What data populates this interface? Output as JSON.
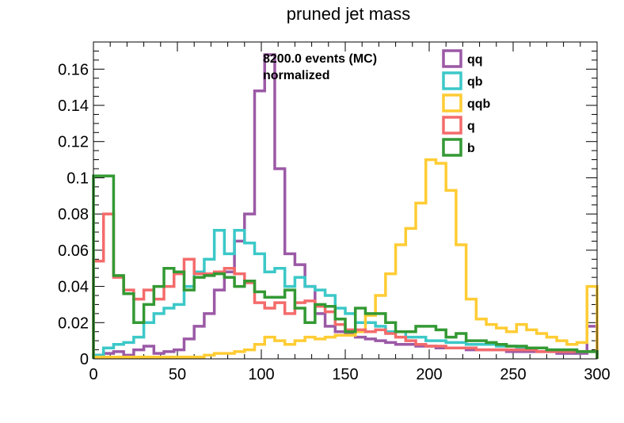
{
  "chart_data": {
    "type": "histogram-step",
    "title": "pruned jet mass",
    "xlabel": "",
    "ylabel": "",
    "xlim": [
      0,
      300
    ],
    "ylim": [
      0,
      0.175
    ],
    "bin_width": 6,
    "x_ticks": [
      0,
      50,
      100,
      150,
      200,
      250,
      300
    ],
    "x_tick_labels": [
      "0",
      "50",
      "100",
      "150",
      "200",
      "250",
      "300"
    ],
    "y_ticks": [
      0,
      0.02,
      0.04,
      0.06,
      0.08,
      0.1,
      0.12,
      0.14,
      0.16
    ],
    "y_tick_labels": [
      "0",
      "0.02",
      "0.04",
      "0.06",
      "0.08",
      "0.1",
      "0.12",
      "0.14",
      "0.16"
    ],
    "annotations": [
      "8200.0 events (MC)",
      "normalized"
    ],
    "legend_position": "top-right",
    "grid": false,
    "series": [
      {
        "name": "qq",
        "color": "#9b59a6",
        "values": [
          0.002,
          0.003,
          0.004,
          0.002,
          0.005,
          0.007,
          0.003,
          0.004,
          0.005,
          0.011,
          0.018,
          0.025,
          0.038,
          0.048,
          0.065,
          0.08,
          0.148,
          0.168,
          0.105,
          0.058,
          0.052,
          0.04,
          0.025,
          0.018,
          0.015,
          0.014,
          0.012,
          0.011,
          0.01,
          0.009,
          0.008,
          0.008,
          0.007,
          0.007,
          0.006,
          0.006,
          0.006,
          0.005,
          0.005,
          0.005,
          0.005,
          0.004,
          0.004,
          0.004,
          0.004,
          0.004,
          0.003,
          0.003,
          0.003,
          0.018
        ]
      },
      {
        "name": "qb",
        "color": "#3cc8c8",
        "values": [
          0.002,
          0.006,
          0.008,
          0.009,
          0.012,
          0.02,
          0.025,
          0.028,
          0.03,
          0.04,
          0.048,
          0.055,
          0.071,
          0.058,
          0.071,
          0.064,
          0.058,
          0.048,
          0.05,
          0.04,
          0.045,
          0.04,
          0.038,
          0.035,
          0.028,
          0.025,
          0.02,
          0.02,
          0.018,
          0.015,
          0.015,
          0.012,
          0.012,
          0.01,
          0.01,
          0.009,
          0.009,
          0.008,
          0.008,
          0.008,
          0.007,
          0.007,
          0.006,
          0.006,
          0.006,
          0.005,
          0.005,
          0.005,
          0.004,
          0.004
        ]
      },
      {
        "name": "qqb",
        "color": "#ffcc33",
        "values": [
          0.001,
          0.001,
          0.001,
          0.001,
          0.001,
          0.001,
          0.001,
          0.001,
          0.001,
          0.001,
          0.001,
          0.002,
          0.003,
          0.003,
          0.004,
          0.005,
          0.008,
          0.012,
          0.01,
          0.008,
          0.01,
          0.012,
          0.011,
          0.012,
          0.013,
          0.013,
          0.015,
          0.024,
          0.035,
          0.047,
          0.063,
          0.072,
          0.086,
          0.11,
          0.108,
          0.093,
          0.063,
          0.033,
          0.022,
          0.019,
          0.017,
          0.015,
          0.019,
          0.016,
          0.014,
          0.012,
          0.01,
          0.008,
          0.009,
          0.04
        ]
      },
      {
        "name": "q",
        "color": "#f46b6b",
        "values": [
          0.054,
          0.08,
          0.045,
          0.038,
          0.033,
          0.038,
          0.033,
          0.04,
          0.047,
          0.055,
          0.047,
          0.047,
          0.048,
          0.05,
          0.047,
          0.042,
          0.031,
          0.028,
          0.031,
          0.025,
          0.031,
          0.032,
          0.029,
          0.026,
          0.019,
          0.016,
          0.016,
          0.015,
          0.016,
          0.014,
          0.012,
          0.01,
          0.008,
          0.007,
          0.007,
          0.006,
          0.006,
          0.006,
          0.005,
          0.005,
          0.005,
          0.005,
          0.005,
          0.005,
          0.004,
          0.004,
          0.004,
          0.004,
          0.004,
          0.004
        ]
      },
      {
        "name": "b",
        "color": "#339933",
        "values": [
          0.101,
          0.101,
          0.046,
          0.036,
          0.02,
          0.03,
          0.04,
          0.05,
          0.048,
          0.038,
          0.045,
          0.046,
          0.047,
          0.045,
          0.04,
          0.043,
          0.037,
          0.034,
          0.034,
          0.038,
          0.028,
          0.02,
          0.03,
          0.029,
          0.022,
          0.015,
          0.028,
          0.025,
          0.025,
          0.02,
          0.015,
          0.015,
          0.018,
          0.018,
          0.016,
          0.012,
          0.014,
          0.01,
          0.01,
          0.009,
          0.008,
          0.007,
          0.007,
          0.006,
          0.006,
          0.005,
          0.005,
          0.005,
          0.004,
          0.004
        ]
      }
    ]
  }
}
